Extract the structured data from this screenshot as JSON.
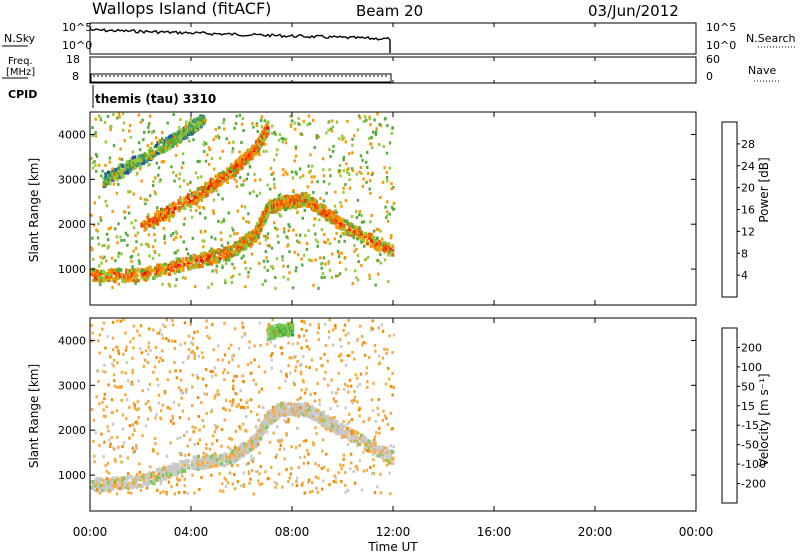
{
  "header": {
    "station": "Wallops Island (fitACF)",
    "beam": "Beam 20",
    "date": "03/Jun/2012"
  },
  "nsky_panel": {
    "label": "N.Sky",
    "left_ticks": [
      "10^5",
      "10^0"
    ],
    "right_ticks": [
      "10^5",
      "10^0"
    ],
    "right_label": "N.Search"
  },
  "freq_panel": {
    "label_line1": "Freq.",
    "label_line2": "[MHz]",
    "left_ticks": [
      "18",
      "8"
    ],
    "right_ticks": [
      "60",
      "0"
    ],
    "right_label": "Nave"
  },
  "cpid_panel": {
    "label": "CPID",
    "text": "themis (tau) 3310"
  },
  "colors": {
    "power_scale": [
      "#0000ff",
      "#2050a0",
      "#3c8c6e",
      "#50aa3c",
      "#96c83c",
      "#fa9600",
      "#f06400",
      "#e63200",
      "#ff0000"
    ],
    "velocity_scale": [
      "#ff0000",
      "#f05000",
      "#f08c00",
      "#f5aa3c",
      "#c8c8c8",
      "#78c850",
      "#3ca03c",
      "#2060a0",
      "#1028c8"
    ],
    "frame": "#000000"
  },
  "chart_data": [
    {
      "type": "heatmap",
      "name": "power",
      "ylabel": "Slant Range [km]",
      "yticks": [
        "1000",
        "2000",
        "3000",
        "4000"
      ],
      "ylim": [
        200,
        4500
      ],
      "xlim": [
        "00:00",
        "24:00"
      ],
      "data_extent": [
        "00:00",
        "12:00"
      ],
      "colorbar_label": "Power [dB]",
      "colorbar_ticks": [
        "4",
        "8",
        "12",
        "16",
        "20",
        "24",
        "28"
      ],
      "colorbar_range": [
        0,
        32
      ],
      "features": [
        {
          "t": [
            0.0,
            2.0,
            4.0,
            5.5,
            6.5,
            7.0,
            7.5,
            8.5,
            10.0,
            12.0
          ],
          "r": [
            900,
            900,
            1200,
            1400,
            1800,
            2400,
            2500,
            2600,
            2000,
            1400
          ],
          "power": 24
        },
        {
          "t": [
            2.0,
            4.0,
            5.5,
            6.5,
            7.0
          ],
          "r": [
            2000,
            2600,
            3200,
            3700,
            4200
          ],
          "power": 26
        },
        {
          "t": [
            0.5,
            2.0,
            3.5,
            4.5
          ],
          "r": [
            3000,
            3500,
            4000,
            4400
          ],
          "power": 16
        }
      ]
    },
    {
      "type": "heatmap",
      "name": "velocity",
      "ylabel": "Slant Range [km]",
      "yticks": [
        "1000",
        "2000",
        "3000",
        "4000"
      ],
      "ylim": [
        200,
        4500
      ],
      "xlabel": "Time UT",
      "xticks": [
        "00:00",
        "04:00",
        "08:00",
        "12:00",
        "16:00",
        "20:00",
        "00:00"
      ],
      "xlim": [
        "00:00",
        "24:00"
      ],
      "data_extent": [
        "00:00",
        "12:00"
      ],
      "colorbar_label": "Velocity [m s⁻¹]",
      "colorbar_ticks": [
        "-200",
        "-100",
        "-50",
        "-15",
        "15",
        "50",
        "100",
        "200"
      ],
      "features": [
        {
          "t": [
            0.0,
            2.0,
            4.0,
            5.5,
            6.5,
            7.0,
            7.5,
            8.5,
            10.0,
            12.0
          ],
          "r": [
            800,
            900,
            1300,
            1400,
            1800,
            2300,
            2500,
            2500,
            2000,
            1400
          ],
          "velocity": 0
        },
        {
          "t": [
            7.0,
            8.0
          ],
          "r": [
            4200,
            4300
          ],
          "velocity": 40
        }
      ]
    }
  ]
}
